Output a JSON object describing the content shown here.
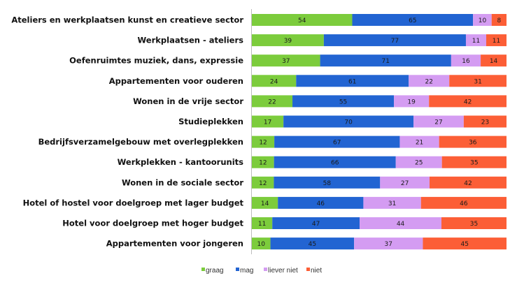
{
  "chart_data": {
    "type": "bar",
    "orientation": "horizontal",
    "stacked": true,
    "normalized": true,
    "title": "",
    "xlabel": "",
    "ylabel": "",
    "grid": false,
    "legend_position": "bottom",
    "categories": [
      "Ateliers en werkplaatsen kunst en creatieve sector",
      "Werkplaatsen - ateliers",
      "Oefenruimtes muziek, dans, expressie",
      "Appartementen voor ouderen",
      "Wonen in de vrije sector",
      "Studieplekken",
      "Bedrijfsverzamelgebouw met overlegplekken",
      "Werkplekken - kantoorunits",
      "Wonen in de sociale sector",
      "Hotel of hostel voor doelgroep met lager budget",
      "Hotel voor doelgroep met hoger budget",
      "Appartementen voor jongeren"
    ],
    "series": [
      {
        "name": "graag",
        "color": "#7ccc3c",
        "values": [
          54,
          39,
          37,
          24,
          22,
          17,
          12,
          12,
          12,
          14,
          11,
          10
        ]
      },
      {
        "name": "mag",
        "color": "#2264d2",
        "values": [
          65,
          77,
          71,
          61,
          55,
          70,
          67,
          66,
          58,
          46,
          47,
          45
        ]
      },
      {
        "name": "liever niet",
        "color": "#d49cf2",
        "values": [
          10,
          11,
          16,
          22,
          19,
          27,
          21,
          25,
          27,
          31,
          44,
          37
        ]
      },
      {
        "name": "niet",
        "color": "#fc5e36",
        "values": [
          8,
          11,
          14,
          31,
          42,
          23,
          36,
          35,
          42,
          46,
          35,
          45
        ]
      }
    ]
  }
}
